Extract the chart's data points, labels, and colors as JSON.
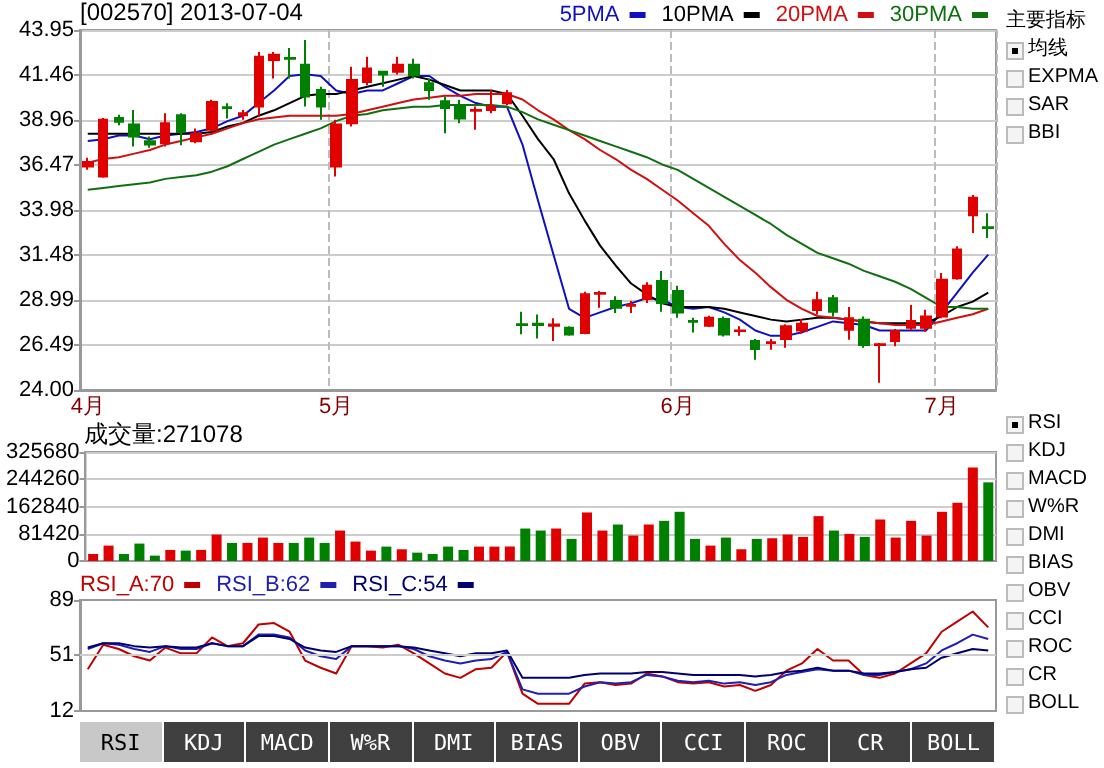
{
  "chart_data": [
    {
      "type": "candlestick",
      "title": "[002570] 2013-07-04",
      "legend": "top right",
      "grid": true,
      "categories": [
        "4月",
        null,
        null,
        null,
        null,
        null,
        null,
        null,
        null,
        null,
        null,
        null,
        null,
        null,
        null,
        null,
        "5月",
        null,
        null,
        null,
        null,
        null,
        null,
        null,
        null,
        null,
        null,
        null,
        null,
        null,
        null,
        null,
        null,
        null,
        null,
        null,
        null,
        null,
        "6月",
        null,
        null,
        null,
        null,
        null,
        null,
        null,
        null,
        null,
        null,
        null,
        null,
        null,
        null,
        null,
        null,
        "7月",
        null,
        null,
        null
      ],
      "ylim": [
        24.0,
        43.95
      ],
      "yticks": [
        {
          "value": 24,
          "label": "24.00"
        },
        {
          "value": 26.49,
          "label": "26.49"
        },
        {
          "value": 28.99,
          "label": "28.99"
        },
        {
          "value": 31.48,
          "label": "31.48"
        },
        {
          "value": 33.98,
          "label": "33.98"
        },
        {
          "value": 36.47,
          "label": "36.47"
        },
        {
          "value": 38.96,
          "label": "38.96"
        },
        {
          "value": 41.46,
          "label": "41.46"
        },
        {
          "value": 43.95,
          "label": "43.95"
        }
      ],
      "ohlc": [
        [
          36.39,
          36.87,
          36.2,
          36.64
        ],
        [
          35.83,
          39.08,
          35.76,
          38.97
        ],
        [
          39.08,
          39.26,
          38.67,
          38.86
        ],
        [
          38.71,
          39.52,
          37.49,
          38.05
        ],
        [
          37.79,
          38.05,
          37.42,
          37.6
        ],
        [
          37.68,
          39.34,
          37.49,
          38.78
        ],
        [
          39.23,
          39.34,
          37.57,
          38.3
        ],
        [
          37.79,
          38.49,
          37.68,
          38.19
        ],
        [
          38.42,
          40.08,
          38.34,
          39.96
        ],
        [
          39.67,
          39.89,
          39.04,
          39.63
        ],
        [
          39.23,
          39.52,
          38.97,
          39.34
        ],
        [
          39.71,
          42.73,
          39.15,
          42.47
        ],
        [
          42.29,
          42.73,
          41.26,
          42.58
        ],
        [
          42.4,
          42.95,
          41.26,
          42.36
        ],
        [
          42.03,
          43.4,
          39.71,
          40.26
        ],
        [
          40.63,
          40.81,
          38.97,
          39.71
        ],
        [
          36.39,
          38.97,
          35.83,
          38.71
        ],
        [
          38.78,
          41.92,
          38.6,
          41.18
        ],
        [
          41.07,
          42.47,
          40.89,
          41.81
        ],
        [
          41.63,
          41.63,
          40.81,
          41.48
        ],
        [
          41.63,
          42.47,
          41.48,
          42.03
        ],
        [
          42.03,
          42.36,
          41.26,
          41.44
        ],
        [
          41.0,
          41.26,
          40.08,
          40.63
        ],
        [
          40.0,
          40.26,
          38.23,
          39.63
        ],
        [
          39.78,
          40.08,
          38.78,
          39.04
        ],
        [
          39.48,
          39.71,
          38.42,
          39.52
        ],
        [
          39.52,
          40.63,
          39.34,
          39.71
        ],
        [
          39.89,
          40.63,
          39.78,
          40.45
        ],
        [
          27.65,
          28.34,
          27.09,
          27.6
        ],
        [
          27.67,
          28.19,
          26.86,
          27.6
        ],
        [
          27.56,
          27.97,
          26.72,
          27.63
        ],
        [
          27.45,
          27.53,
          27.01,
          27.08
        ],
        [
          27.16,
          29.45,
          27.09,
          29.3
        ],
        [
          29.34,
          29.49,
          28.56,
          29.38
        ],
        [
          28.93,
          29.19,
          28.27,
          28.56
        ],
        [
          28.67,
          28.93,
          28.27,
          28.71
        ],
        [
          29.04,
          29.97,
          28.82,
          29.78
        ],
        [
          30.04,
          30.6,
          28.34,
          28.82
        ],
        [
          29.49,
          29.78,
          28.01,
          28.3
        ],
        [
          27.82,
          28.01,
          27.19,
          27.78
        ],
        [
          27.56,
          28.12,
          27.49,
          28.01
        ],
        [
          27.93,
          28.08,
          26.97,
          27.08
        ],
        [
          27.27,
          27.53,
          27.01,
          27.3
        ],
        [
          26.71,
          26.82,
          25.68,
          26.27
        ],
        [
          26.6,
          26.82,
          26.23,
          26.64
        ],
        [
          26.82,
          27.64,
          26.34,
          27.53
        ],
        [
          27.3,
          27.93,
          27.12,
          27.67
        ],
        [
          28.43,
          29.45,
          28.19,
          28.97
        ],
        [
          29.08,
          29.26,
          28.08,
          28.34
        ],
        [
          27.34,
          28.6,
          26.79,
          27.97
        ],
        [
          27.89,
          28.08,
          26.34,
          26.49
        ],
        [
          26.49,
          26.6,
          24.4,
          26.53
        ],
        [
          26.71,
          27.38,
          26.42,
          27.27
        ],
        [
          27.45,
          28.71,
          27.34,
          27.82
        ],
        [
          27.45,
          28.45,
          27.23,
          28.08
        ],
        [
          28.08,
          30.48,
          27.97,
          30.11
        ],
        [
          30.19,
          31.96,
          30.11,
          31.78
        ],
        [
          33.69,
          34.8,
          32.7,
          34.65
        ],
        [
          33.02,
          33.8,
          32.43,
          32.98
        ]
      ],
      "colors": [
        "#e00000",
        "#e00000",
        "#008000",
        "#008000",
        "#008000",
        "#e00000",
        "#008000",
        "#e00000",
        "#e00000",
        "#008000",
        "#e00000",
        "#e00000",
        "#e00000",
        "#008000",
        "#008000",
        "#008000",
        "#e00000",
        "#e00000",
        "#e00000",
        "#008000",
        "#e00000",
        "#008000",
        "#008000",
        "#008000",
        "#008000",
        "#e00000",
        "#e00000",
        "#e00000",
        "#008000",
        "#008000",
        "#e00000",
        "#008000",
        "#e00000",
        "#e00000",
        "#008000",
        "#e00000",
        "#e00000",
        "#008000",
        "#008000",
        "#008000",
        "#e00000",
        "#008000",
        "#e00000",
        "#008000",
        "#e00000",
        "#e00000",
        "#e00000",
        "#e00000",
        "#008000",
        "#e00000",
        "#008000",
        "#e00000",
        "#e00000",
        "#e00000",
        "#e00000",
        "#e00000",
        "#e00000",
        "#e00000",
        "#008000"
      ],
      "series": [
        {
          "type": "line",
          "name": "5PMA",
          "color": "#1010c0",
          "values": [
            37.8,
            37.9,
            38.1,
            38.1,
            37.9,
            38.1,
            38.2,
            38.3,
            38.5,
            38.9,
            39.2,
            39.9,
            40.6,
            41.4,
            41.5,
            41.4,
            40.6,
            40.4,
            40.6,
            40.6,
            41.0,
            41.4,
            41.4,
            40.8,
            40.3,
            39.9,
            39.7,
            39.7,
            37.6,
            34.5,
            31.5,
            28.5,
            28.0,
            28.3,
            28.6,
            28.8,
            29.1,
            29.0,
            28.6,
            28.5,
            28.6,
            28.3,
            27.9,
            27.3,
            27.0,
            27.0,
            27.2,
            27.5,
            27.8,
            27.7,
            27.6,
            27.3,
            27.3,
            27.3,
            27.3,
            28.3,
            29.4,
            30.5,
            31.5
          ]
        },
        {
          "type": "line",
          "name": "10PMA",
          "color": "#000000",
          "values": [
            38.2,
            38.2,
            38.2,
            38.2,
            38.2,
            38.2,
            38.2,
            38.2,
            38.3,
            38.6,
            38.8,
            39.2,
            39.5,
            39.9,
            40.3,
            40.4,
            40.4,
            40.6,
            40.8,
            41.0,
            41.2,
            41.4,
            41.2,
            40.9,
            40.6,
            40.6,
            40.6,
            40.4,
            39.2,
            37.9,
            36.8,
            34.9,
            33.4,
            32.0,
            30.9,
            29.9,
            29.3,
            28.8,
            28.6,
            28.6,
            28.6,
            28.5,
            28.3,
            28.1,
            27.9,
            27.8,
            27.9,
            28.0,
            28.0,
            27.9,
            27.8,
            27.7,
            27.7,
            27.7,
            27.7,
            28.1,
            28.6,
            28.9,
            29.4
          ]
        },
        {
          "type": "line",
          "name": "20PMA",
          "color": "#d01010",
          "values": [
            36.6,
            36.8,
            36.9,
            37.1,
            37.3,
            37.6,
            37.8,
            38.0,
            38.2,
            38.5,
            38.8,
            39.0,
            39.1,
            39.2,
            39.2,
            39.2,
            39.2,
            39.3,
            39.5,
            39.7,
            39.9,
            40.1,
            40.2,
            40.3,
            40.3,
            40.4,
            40.4,
            40.4,
            40.1,
            39.5,
            39.0,
            38.4,
            37.9,
            37.3,
            36.8,
            36.2,
            35.7,
            35.1,
            34.5,
            33.8,
            33.1,
            32.1,
            31.2,
            30.5,
            29.7,
            29.0,
            28.5,
            28.1,
            28.0,
            27.9,
            27.8,
            27.7,
            27.6,
            27.6,
            27.6,
            27.8,
            28.0,
            28.2,
            28.5
          ]
        },
        {
          "type": "line",
          "name": "30PMA",
          "color": "#107010",
          "values": [
            35.1,
            35.2,
            35.3,
            35.4,
            35.5,
            35.7,
            35.8,
            35.9,
            36.1,
            36.4,
            36.8,
            37.2,
            37.6,
            37.9,
            38.2,
            38.5,
            38.9,
            39.2,
            39.3,
            39.5,
            39.6,
            39.7,
            39.7,
            39.8,
            39.8,
            39.8,
            39.8,
            39.7,
            39.4,
            39.0,
            38.7,
            38.4,
            38.1,
            37.8,
            37.5,
            37.2,
            36.9,
            36.5,
            36.2,
            35.7,
            35.2,
            34.7,
            34.2,
            33.7,
            33.2,
            32.6,
            32.1,
            31.6,
            31.3,
            31.0,
            30.6,
            30.3,
            30.0,
            29.6,
            29.1,
            28.6,
            28.6,
            28.5,
            28.5
          ]
        }
      ]
    },
    {
      "type": "bar",
      "title": "成交量:271078",
      "grid": "y",
      "tick_labels": "y",
      "categories": [
        null,
        null,
        null,
        null,
        null,
        null,
        null,
        null,
        null,
        null,
        null,
        null,
        null,
        null,
        null,
        null,
        null,
        null,
        null,
        null,
        null,
        null,
        null,
        null,
        null,
        null,
        null,
        null,
        null,
        null,
        null,
        null,
        null,
        null,
        null,
        null,
        null,
        null,
        null,
        null,
        null,
        null,
        null,
        null,
        null,
        null,
        null,
        null,
        null,
        null,
        null,
        null,
        null,
        null,
        null,
        null,
        null,
        null,
        null
      ],
      "ylim": [
        0,
        325680
      ],
      "yticks": [
        0,
        81420,
        162840,
        244260,
        325680
      ],
      "values": [
        21000,
        46000,
        21000,
        52000,
        16000,
        33000,
        31000,
        33000,
        79000,
        54000,
        54000,
        70000,
        54000,
        54000,
        70000,
        54000,
        91000,
        58000,
        31000,
        43000,
        35000,
        25000,
        21000,
        43000,
        33000,
        43000,
        43000,
        43000,
        97000,
        91000,
        97000,
        66000,
        145000,
        91000,
        109000,
        76000,
        109000,
        120000,
        147000,
        66000,
        46000,
        70000,
        35000,
        66000,
        68000,
        79000,
        72000,
        134000,
        91000,
        81000,
        72000,
        124000,
        70000,
        120000,
        76000,
        147000,
        174000,
        279000,
        235000
      ],
      "colors": [
        "#e00000",
        "#e00000",
        "#008000",
        "#008000",
        "#008000",
        "#e00000",
        "#008000",
        "#e00000",
        "#e00000",
        "#008000",
        "#e00000",
        "#e00000",
        "#e00000",
        "#008000",
        "#008000",
        "#008000",
        "#e00000",
        "#e00000",
        "#e00000",
        "#008000",
        "#e00000",
        "#008000",
        "#008000",
        "#008000",
        "#008000",
        "#e00000",
        "#e00000",
        "#e00000",
        "#008000",
        "#008000",
        "#e00000",
        "#008000",
        "#e00000",
        "#e00000",
        "#008000",
        "#e00000",
        "#e00000",
        "#008000",
        "#008000",
        "#008000",
        "#e00000",
        "#008000",
        "#e00000",
        "#008000",
        "#e00000",
        "#e00000",
        "#e00000",
        "#e00000",
        "#008000",
        "#e00000",
        "#008000",
        "#e00000",
        "#e00000",
        "#e00000",
        "#e00000",
        "#e00000",
        "#e00000",
        "#e00000",
        "#008000"
      ]
    },
    {
      "type": "line",
      "legend": "top left",
      "tick_labels": "y",
      "categories": [
        null,
        null,
        null,
        null,
        null,
        null,
        null,
        null,
        null,
        null,
        null,
        null,
        null,
        null,
        null,
        null,
        null,
        null,
        null,
        null,
        null,
        null,
        null,
        null,
        null,
        null,
        null,
        null,
        null,
        null,
        null,
        null,
        null,
        null,
        null,
        null,
        null,
        null,
        null,
        null,
        null,
        null,
        null,
        null,
        null,
        null,
        null,
        null,
        null,
        null,
        null,
        null,
        null,
        null,
        null,
        null,
        null,
        null,
        null
      ],
      "ylim": [
        12,
        89
      ],
      "yticks": [
        12,
        51,
        89
      ],
      "ref_lines": [
        {
          "axis": "y",
          "value": 51,
          "color": "#cccccc"
        }
      ],
      "series": [
        {
          "name": "RSI_A:70",
          "color": "#c00000",
          "values": [
            41,
            58,
            55,
            50,
            47,
            56,
            52,
            52,
            63,
            57,
            59,
            72,
            73,
            67,
            47,
            42,
            38,
            57,
            57,
            56,
            58,
            52,
            45,
            38,
            35,
            41,
            42,
            53,
            24,
            17,
            17,
            17,
            31,
            32,
            30,
            31,
            38,
            36,
            32,
            31,
            32,
            29,
            30,
            26,
            30,
            40,
            45,
            55,
            47,
            47,
            37,
            35,
            38,
            45,
            52,
            67,
            74,
            81,
            70
          ]
        },
        {
          "name": "RSI_B:62",
          "color": "#2020b0",
          "values": [
            55,
            59,
            58,
            55,
            53,
            57,
            55,
            55,
            59,
            57,
            57,
            65,
            65,
            63,
            54,
            50,
            48,
            57,
            57,
            57,
            57,
            55,
            50,
            47,
            45,
            47,
            48,
            53,
            27,
            24,
            24,
            24,
            29,
            32,
            31,
            32,
            37,
            36,
            33,
            32,
            33,
            31,
            32,
            30,
            32,
            37,
            39,
            41,
            40,
            40,
            37,
            37,
            39,
            41,
            45,
            54,
            59,
            65,
            62
          ]
        },
        {
          "name": "RSI_C:54",
          "color": "#000070",
          "values": [
            56,
            59,
            59,
            57,
            56,
            57,
            56,
            56,
            59,
            57,
            57,
            64,
            64,
            62,
            56,
            54,
            53,
            57,
            57,
            57,
            57,
            56,
            54,
            52,
            50,
            52,
            52,
            54,
            35,
            35,
            35,
            35,
            37,
            38,
            38,
            38,
            39,
            39,
            38,
            37,
            37,
            37,
            37,
            36,
            37,
            39,
            40,
            42,
            40,
            40,
            38,
            38,
            39,
            41,
            42,
            49,
            52,
            55,
            54
          ]
        }
      ]
    },
    {
      "type": "other",
      "annotations": [
        "主要指标",
        "均线",
        "EXPMA",
        "SAR",
        "BBI"
      ]
    },
    {
      "type": "other",
      "annotations": [
        "RSI",
        "KDJ",
        "MACD",
        "W%R",
        "DMI",
        "BIAS",
        "OBV",
        "CCI",
        "ROC",
        "CR",
        "BOLL"
      ]
    },
    {
      "type": "other",
      "annotations": [
        "RSI",
        "KDJ",
        "MACD",
        "W%R",
        "DMI",
        "BIAS",
        "OBV",
        "CCI",
        "ROC",
        "CR",
        "BOLL"
      ]
    }
  ]
}
